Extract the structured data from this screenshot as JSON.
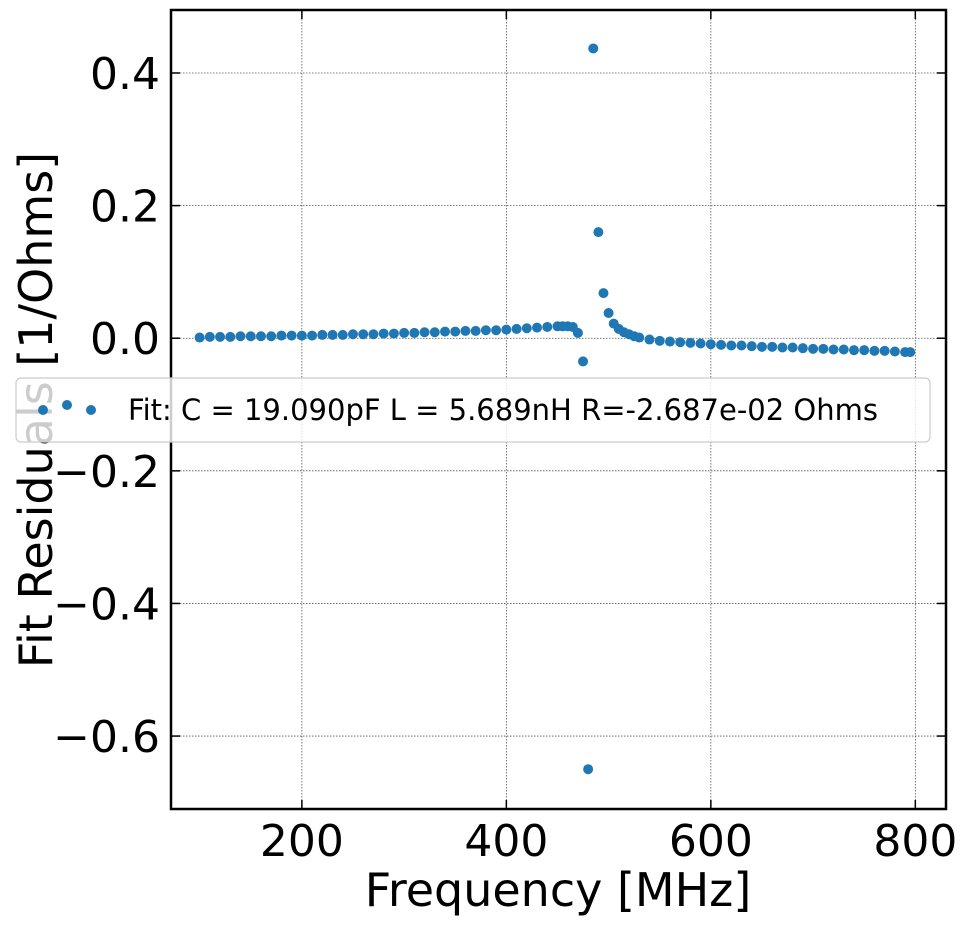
{
  "chart_data": {
    "type": "scatter",
    "xlabel": "Frequency [MHz]",
    "ylabel": "Fit Residuals [1/Ohms]",
    "xlim": [
      72,
      830
    ],
    "ylim": [
      -0.71,
      0.495
    ],
    "xticks": [
      200,
      400,
      600,
      800
    ],
    "xtick_labels": [
      "200",
      "400",
      "600",
      "800"
    ],
    "yticks": [
      -0.6,
      -0.4,
      -0.2,
      0.0,
      0.2,
      0.4
    ],
    "ytick_labels": [
      "−0.6",
      "−0.4",
      "−0.2",
      "0.0",
      "0.2",
      "0.4"
    ],
    "grid": true,
    "legend": {
      "placement": "center-left",
      "entries": [
        "Fit: C = 19.090pF L = 5.689nH R=-2.687e-02 Ohms"
      ]
    },
    "series": [
      {
        "name": "Fit: C = 19.090pF L = 5.689nH R=-2.687e-02 Ohms",
        "color": "#1f77b4",
        "x": [
          100,
          110,
          120,
          130,
          140,
          150,
          160,
          170,
          180,
          190,
          200,
          210,
          220,
          230,
          240,
          250,
          260,
          270,
          280,
          290,
          300,
          310,
          320,
          330,
          340,
          350,
          360,
          370,
          380,
          390,
          400,
          410,
          420,
          430,
          440,
          450,
          455,
          460,
          465,
          470,
          475,
          480,
          485,
          490,
          495,
          500,
          505,
          510,
          515,
          520,
          525,
          530,
          540,
          550,
          560,
          570,
          580,
          590,
          600,
          610,
          620,
          630,
          640,
          650,
          660,
          670,
          680,
          690,
          700,
          710,
          720,
          730,
          740,
          750,
          760,
          770,
          780,
          790,
          795
        ],
        "y": [
          0.001,
          0.002,
          0.002,
          0.002,
          0.003,
          0.003,
          0.003,
          0.003,
          0.004,
          0.004,
          0.004,
          0.004,
          0.005,
          0.005,
          0.005,
          0.006,
          0.006,
          0.006,
          0.007,
          0.007,
          0.008,
          0.008,
          0.009,
          0.009,
          0.01,
          0.01,
          0.011,
          0.011,
          0.012,
          0.012,
          0.013,
          0.014,
          0.015,
          0.016,
          0.017,
          0.018,
          0.018,
          0.018,
          0.017,
          0.008,
          -0.035,
          -0.65,
          0.437,
          0.16,
          0.068,
          0.038,
          0.022,
          0.014,
          0.009,
          0.006,
          0.003,
          0.001,
          -0.002,
          -0.004,
          -0.005,
          -0.006,
          -0.007,
          -0.008,
          -0.009,
          -0.01,
          -0.011,
          -0.011,
          -0.012,
          -0.013,
          -0.013,
          -0.014,
          -0.014,
          -0.015,
          -0.016,
          -0.016,
          -0.017,
          -0.017,
          -0.018,
          -0.018,
          -0.019,
          -0.019,
          -0.02,
          -0.021,
          -0.021
        ]
      }
    ]
  }
}
